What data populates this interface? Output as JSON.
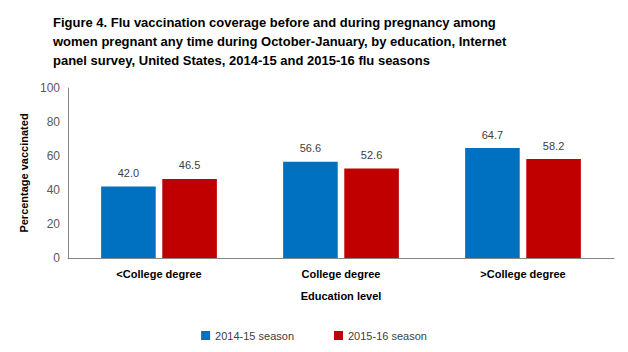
{
  "chart_data": {
    "type": "bar",
    "title": "Figure 4. Flu vaccination coverage before and during pregnancy among\nwomen pregnant any time during October-January, by education, Internet\npanel survey, United States, 2014-15 and 2015-16 flu seasons",
    "x_label": "Education level",
    "y_label": "Percentage vaccinated",
    "categories": [
      "<College degree",
      "College degree",
      ">College degree"
    ],
    "series": [
      {
        "name": "2014-15 season",
        "color": "#0070c0",
        "values": [
          42.0,
          56.6,
          64.7
        ],
        "value_labels": [
          "42.0",
          "56.6",
          "64.7"
        ]
      },
      {
        "name": "2015-16 season",
        "color": "#c00000",
        "values": [
          46.5,
          52.6,
          58.2
        ],
        "value_labels": [
          "46.5",
          "52.6",
          "58.2"
        ]
      }
    ],
    "ylim": [
      0,
      100
    ],
    "yticks": [
      0,
      20,
      40,
      60,
      80,
      100
    ],
    "grid": false,
    "legend": "bottom",
    "data_labels": true
  }
}
